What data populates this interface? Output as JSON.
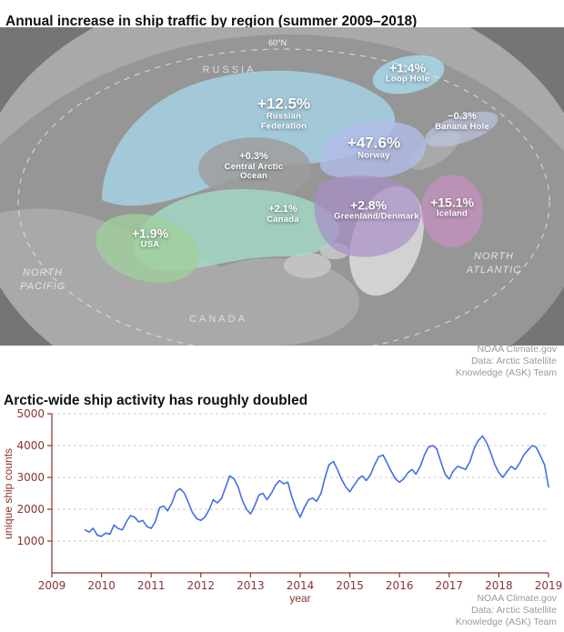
{
  "map": {
    "title": "Annual increase in ship traffic by region (summer 2009–2018)",
    "regions": [
      {
        "id": "russian-federation",
        "value": "+12.5%",
        "name": "Russian Federation",
        "color": "#a6d7ec"
      },
      {
        "id": "loop-hole",
        "value": "+1.4%",
        "name": "Loop Hole",
        "color": "#aadcf0"
      },
      {
        "id": "banana-hole",
        "value": "−0.3%",
        "name": "Banana Hole",
        "color": "#c2cdea"
      },
      {
        "id": "norway",
        "value": "+47.6%",
        "name": "Norway",
        "color": "#b2bce9"
      },
      {
        "id": "central-arctic-ocean",
        "value": "+0.3%",
        "name": "Central Arctic Ocean",
        "color": "#9d9d9d"
      },
      {
        "id": "greenland-denmark",
        "value": "+2.8%",
        "name": "Greenland/Denmark",
        "color": "#a88fc7"
      },
      {
        "id": "iceland",
        "value": "+15.1%",
        "name": "Iceland",
        "color": "#c590bf"
      },
      {
        "id": "canada",
        "value": "+2.1%",
        "name": "Canada",
        "color": "#a3dcc6"
      },
      {
        "id": "usa",
        "value": "+1.9%",
        "name": "USA",
        "color": "#a0cf9c"
      }
    ],
    "geo_labels": {
      "parallel": "60°N",
      "russia": "RUSSIA",
      "canada": "CANADA",
      "north_pacific": "NORTH PACIFIC",
      "north_atlantic": "NORTH ATLANTIC"
    }
  },
  "attribution": {
    "lines": [
      "NOAA Climate.gov",
      "Data: Arctic Satellite",
      "Knowledge (ASK) Team"
    ]
  },
  "chart": {
    "title": "Arctic-wide ship activity has roughly doubled"
  },
  "chart_data": {
    "type": "line",
    "title": "Arctic-wide ship activity has roughly doubled",
    "xlabel": "year",
    "ylabel": "unique ship counts",
    "xlim": [
      2009,
      2019
    ],
    "ylim": [
      0,
      5000
    ],
    "xticks": [
      2009,
      2010,
      2011,
      2012,
      2013,
      2014,
      2015,
      2016,
      2017,
      2018,
      2019
    ],
    "yticks": [
      1000,
      2000,
      3000,
      4000,
      5000
    ],
    "grid": "dashed horizontal gridlines at each y tick",
    "legend": "none",
    "colors": {
      "line": "#4170e2",
      "axis": "#8b3332",
      "grid": "#cccccc",
      "attribution": "#9a9a9a"
    },
    "series": [
      {
        "name": "unique ship counts",
        "points": [
          [
            2009.67,
            1350
          ],
          [
            2009.75,
            1280
          ],
          [
            2009.83,
            1400
          ],
          [
            2009.92,
            1180
          ],
          [
            2010.0,
            1150
          ],
          [
            2010.08,
            1250
          ],
          [
            2010.17,
            1220
          ],
          [
            2010.25,
            1500
          ],
          [
            2010.33,
            1400
          ],
          [
            2010.42,
            1350
          ],
          [
            2010.5,
            1600
          ],
          [
            2010.58,
            1800
          ],
          [
            2010.67,
            1750
          ],
          [
            2010.75,
            1600
          ],
          [
            2010.83,
            1650
          ],
          [
            2010.92,
            1450
          ],
          [
            2011.0,
            1400
          ],
          [
            2011.08,
            1600
          ],
          [
            2011.17,
            2050
          ],
          [
            2011.25,
            2100
          ],
          [
            2011.33,
            1950
          ],
          [
            2011.42,
            2200
          ],
          [
            2011.5,
            2550
          ],
          [
            2011.58,
            2650
          ],
          [
            2011.67,
            2500
          ],
          [
            2011.75,
            2200
          ],
          [
            2011.83,
            1900
          ],
          [
            2011.92,
            1700
          ],
          [
            2012.0,
            1650
          ],
          [
            2012.08,
            1750
          ],
          [
            2012.17,
            2000
          ],
          [
            2012.25,
            2300
          ],
          [
            2012.33,
            2200
          ],
          [
            2012.42,
            2350
          ],
          [
            2012.5,
            2700
          ],
          [
            2012.58,
            3050
          ],
          [
            2012.67,
            2950
          ],
          [
            2012.75,
            2700
          ],
          [
            2012.83,
            2300
          ],
          [
            2012.92,
            2000
          ],
          [
            2013.0,
            1850
          ],
          [
            2013.08,
            2100
          ],
          [
            2013.17,
            2450
          ],
          [
            2013.25,
            2500
          ],
          [
            2013.33,
            2300
          ],
          [
            2013.42,
            2500
          ],
          [
            2013.5,
            2750
          ],
          [
            2013.58,
            2900
          ],
          [
            2013.67,
            2800
          ],
          [
            2013.75,
            2850
          ],
          [
            2013.83,
            2400
          ],
          [
            2013.92,
            2000
          ],
          [
            2014.0,
            1750
          ],
          [
            2014.08,
            2050
          ],
          [
            2014.17,
            2300
          ],
          [
            2014.25,
            2350
          ],
          [
            2014.33,
            2250
          ],
          [
            2014.42,
            2500
          ],
          [
            2014.5,
            3000
          ],
          [
            2014.58,
            3400
          ],
          [
            2014.67,
            3500
          ],
          [
            2014.75,
            3250
          ],
          [
            2014.83,
            2950
          ],
          [
            2014.92,
            2700
          ],
          [
            2015.0,
            2550
          ],
          [
            2015.08,
            2750
          ],
          [
            2015.17,
            2950
          ],
          [
            2015.25,
            3050
          ],
          [
            2015.33,
            2900
          ],
          [
            2015.42,
            3100
          ],
          [
            2015.5,
            3400
          ],
          [
            2015.58,
            3650
          ],
          [
            2015.67,
            3700
          ],
          [
            2015.75,
            3450
          ],
          [
            2015.83,
            3200
          ],
          [
            2015.92,
            2950
          ],
          [
            2016.0,
            2850
          ],
          [
            2016.08,
            2950
          ],
          [
            2016.17,
            3150
          ],
          [
            2016.25,
            3250
          ],
          [
            2016.33,
            3100
          ],
          [
            2016.42,
            3350
          ],
          [
            2016.5,
            3700
          ],
          [
            2016.58,
            3950
          ],
          [
            2016.67,
            4000
          ],
          [
            2016.75,
            3900
          ],
          [
            2016.83,
            3500
          ],
          [
            2016.92,
            3100
          ],
          [
            2017.0,
            2950
          ],
          [
            2017.08,
            3200
          ],
          [
            2017.17,
            3350
          ],
          [
            2017.25,
            3300
          ],
          [
            2017.33,
            3250
          ],
          [
            2017.42,
            3500
          ],
          [
            2017.5,
            3900
          ],
          [
            2017.58,
            4150
          ],
          [
            2017.67,
            4300
          ],
          [
            2017.75,
            4100
          ],
          [
            2017.83,
            3800
          ],
          [
            2017.92,
            3400
          ],
          [
            2018.0,
            3150
          ],
          [
            2018.08,
            3000
          ],
          [
            2018.17,
            3200
          ],
          [
            2018.25,
            3350
          ],
          [
            2018.33,
            3250
          ],
          [
            2018.42,
            3450
          ],
          [
            2018.5,
            3700
          ],
          [
            2018.58,
            3850
          ],
          [
            2018.67,
            4000
          ],
          [
            2018.75,
            3950
          ],
          [
            2018.83,
            3700
          ],
          [
            2018.92,
            3400
          ],
          [
            2019.0,
            2700
          ]
        ]
      }
    ]
  }
}
